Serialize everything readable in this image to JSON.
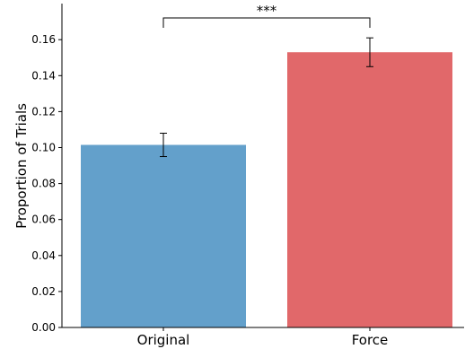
{
  "chart_data": {
    "type": "bar",
    "ylabel": "Proportion of Trials",
    "xlabel": "",
    "ylim": [
      0,
      0.18
    ],
    "yticks": [
      0.0,
      0.02,
      0.04,
      0.06,
      0.08,
      0.1,
      0.12,
      0.14,
      0.16
    ],
    "yticklabels": [
      "0.00",
      "0.02",
      "0.04",
      "0.06",
      "0.08",
      "0.10",
      "0.12",
      "0.14",
      "0.16"
    ],
    "categories": [
      "Original",
      "Force"
    ],
    "values": [
      0.1015,
      0.153
    ],
    "error": [
      0.0065,
      0.008
    ],
    "colors": [
      "#63a0cb",
      "#e1686a"
    ],
    "grid": false,
    "significance": {
      "between": [
        "Original",
        "Force"
      ],
      "label": "***"
    }
  }
}
